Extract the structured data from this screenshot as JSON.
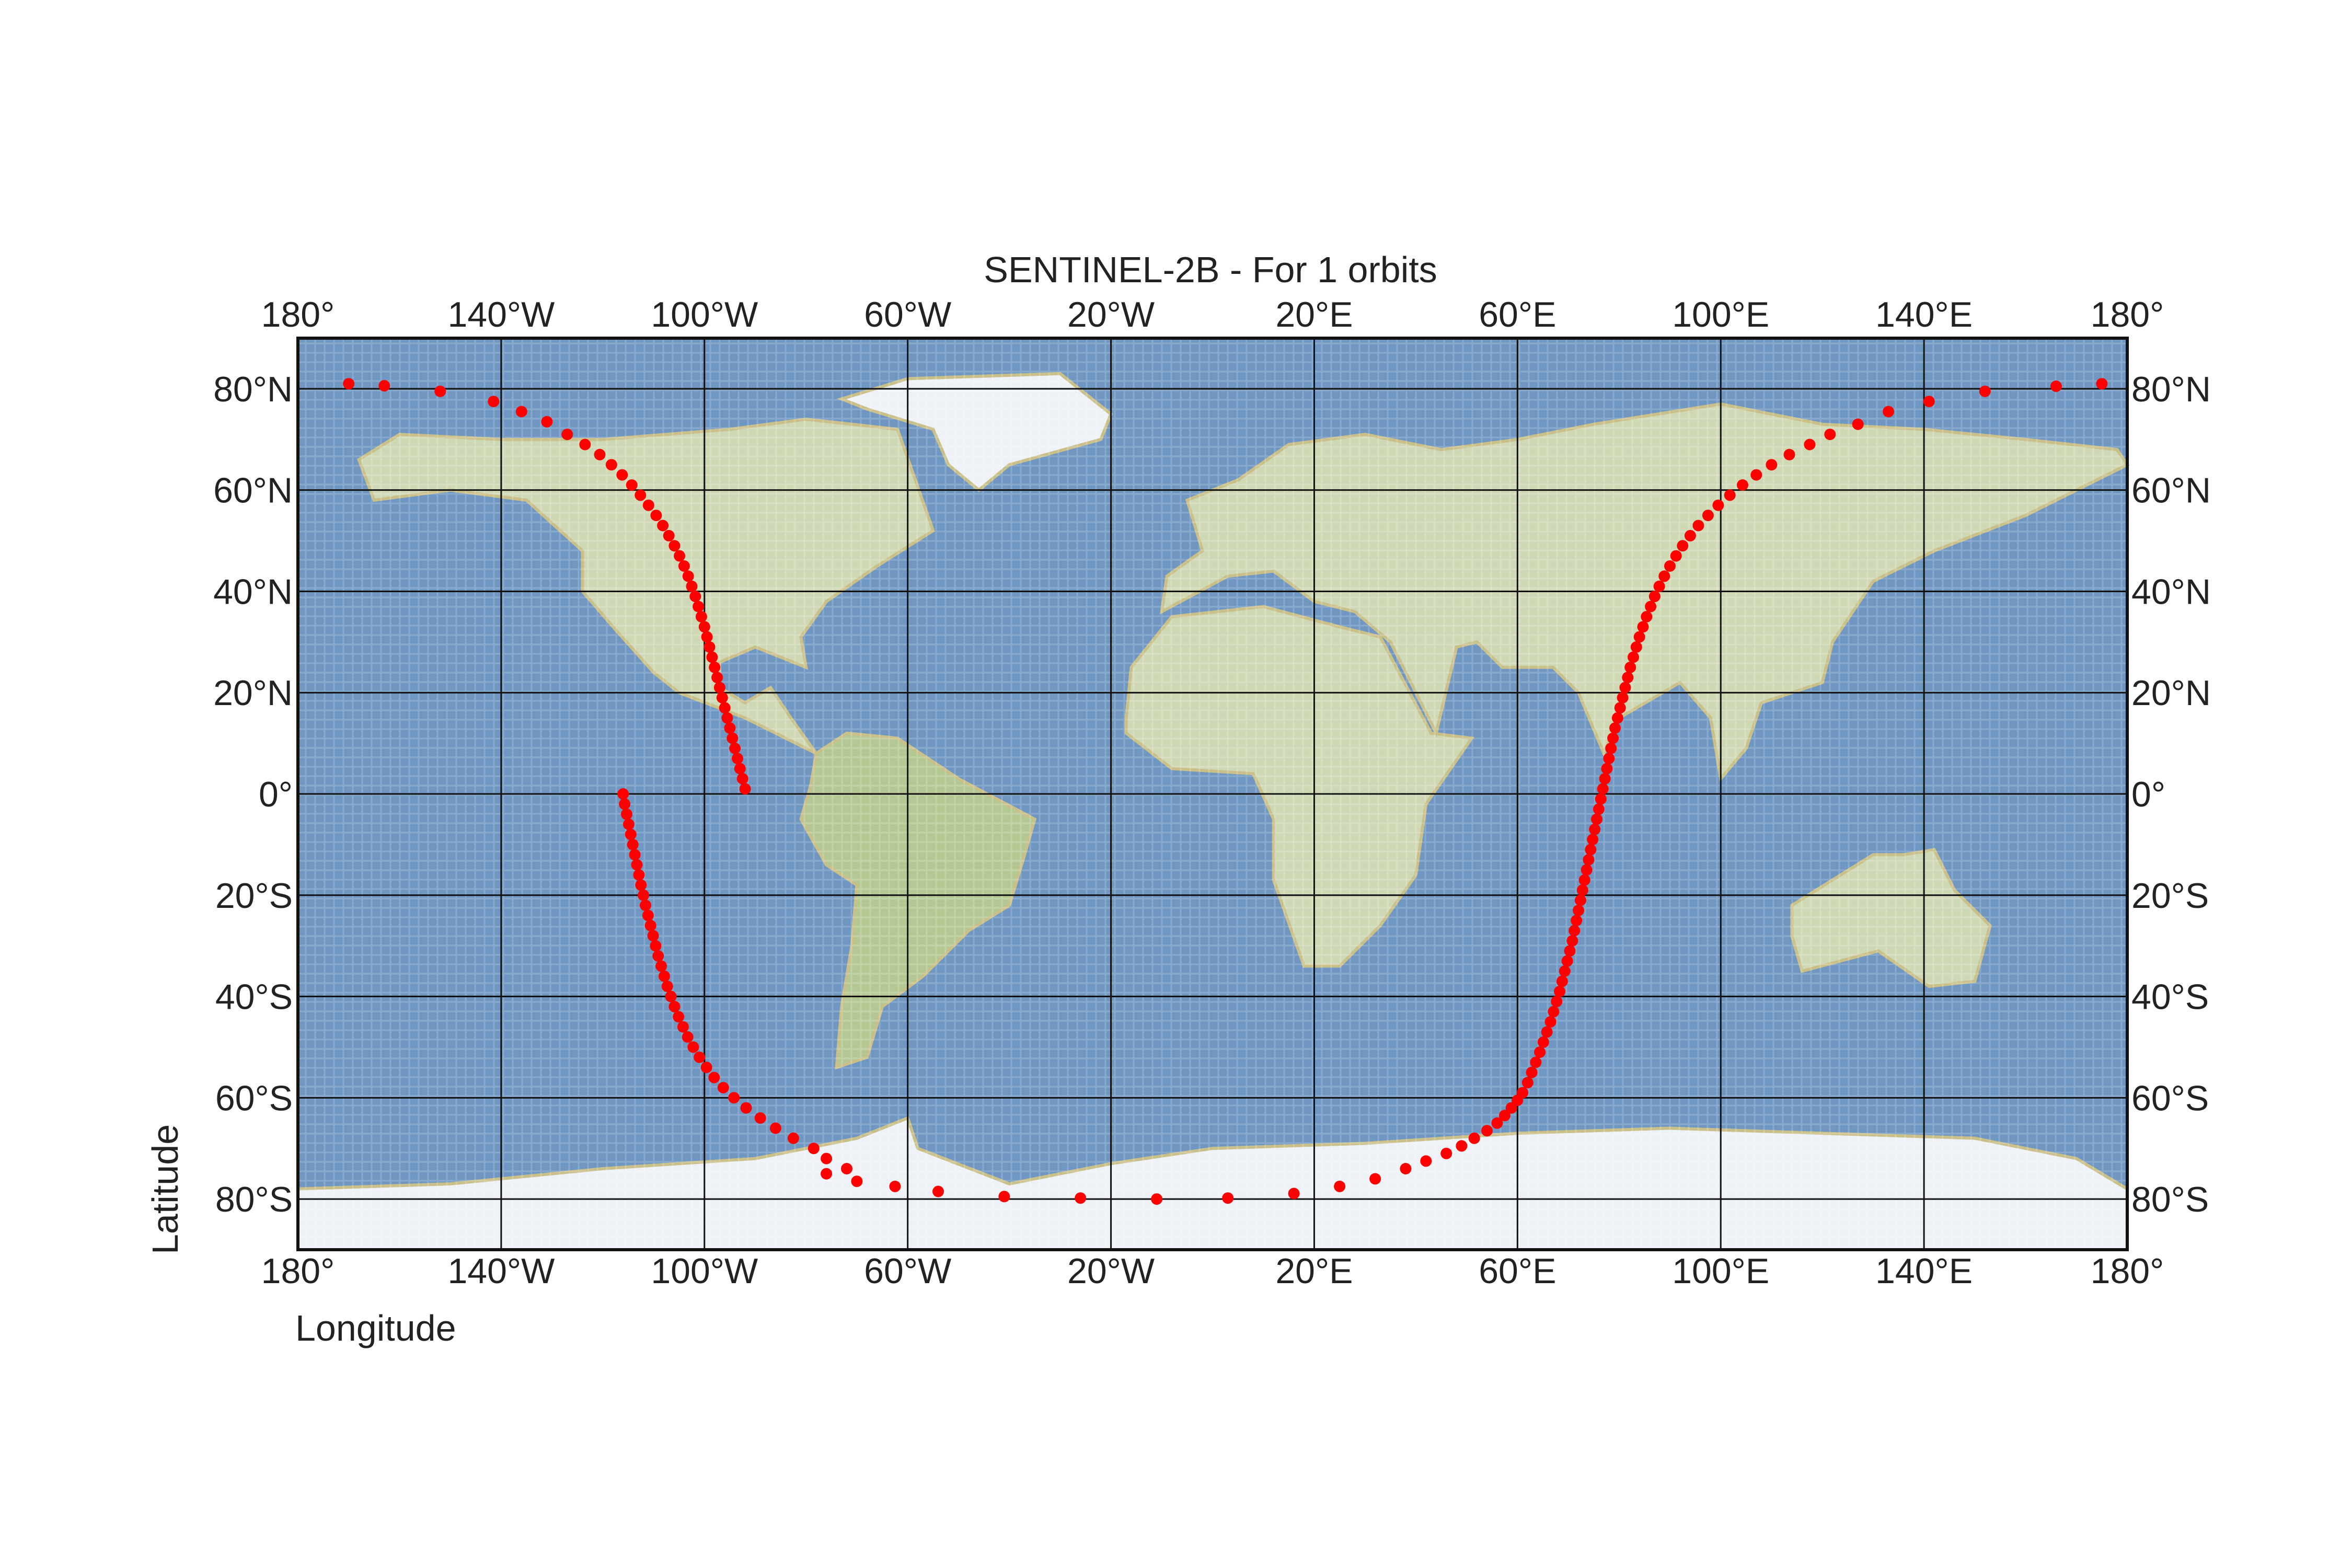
{
  "title": "SENTINEL-2B - For 1 orbits",
  "xlabel": "Longitude",
  "ylabel": "Latitude",
  "colors": {
    "ocean": "#6f97c2",
    "land": "#cfd8b4",
    "land_green": "#b5c894",
    "ice": "#eef1f6",
    "coast": "#c9c089",
    "grid": "#111111",
    "track": "#ff0000"
  },
  "x_ticks": [
    "180°",
    "140°W",
    "100°W",
    "60°W",
    "20°W",
    "20°E",
    "60°E",
    "100°E",
    "140°E",
    "180°"
  ],
  "y_ticks": [
    "80°N",
    "60°N",
    "40°N",
    "20°N",
    "0°",
    "20°S",
    "40°S",
    "60°S",
    "80°S"
  ],
  "chart_data": {
    "type": "scatter",
    "title": "SENTINEL-2B - For 1 orbits",
    "xlabel": "Longitude",
    "ylabel": "Latitude",
    "xlim": [
      -180,
      180
    ],
    "ylim": [
      -90,
      90
    ],
    "grid": true,
    "x_ticks": [
      -180,
      -140,
      -100,
      -60,
      -20,
      20,
      60,
      100,
      140,
      180
    ],
    "y_ticks": [
      80,
      60,
      40,
      20,
      0,
      -20,
      -40,
      -60,
      -80
    ],
    "series": [
      {
        "color": "#ff0000",
        "points": [
          [
            -92,
            1
          ],
          [
            -92.5,
            3
          ],
          [
            -93,
            5
          ],
          [
            -93.5,
            7
          ],
          [
            -94,
            9
          ],
          [
            -94.5,
            11
          ],
          [
            -95,
            13
          ],
          [
            -95.5,
            15
          ],
          [
            -96,
            17
          ],
          [
            -96.5,
            19
          ],
          [
            -97,
            21
          ],
          [
            -97.5,
            23
          ],
          [
            -98,
            25
          ],
          [
            -98.5,
            27
          ],
          [
            -99,
            29
          ],
          [
            -99.5,
            31
          ],
          [
            -100,
            33
          ],
          [
            -100.6,
            35
          ],
          [
            -101.2,
            37
          ],
          [
            -101.8,
            39
          ],
          [
            -102.5,
            41
          ],
          [
            -103.2,
            43
          ],
          [
            -104,
            45
          ],
          [
            -104.9,
            47
          ],
          [
            -105.9,
            49
          ],
          [
            -107,
            51
          ],
          [
            -108.2,
            53
          ],
          [
            -109.5,
            55
          ],
          [
            -111,
            57
          ],
          [
            -112.6,
            59
          ],
          [
            -114.3,
            61
          ],
          [
            -116.2,
            63
          ],
          [
            -118.3,
            65
          ],
          [
            -120.6,
            67
          ],
          [
            -123.5,
            69
          ],
          [
            -127,
            71
          ],
          [
            -131,
            73.5
          ],
          [
            -136,
            75.5
          ],
          [
            -141.5,
            77.5
          ],
          [
            -152,
            79.5
          ],
          [
            -163,
            80.6
          ],
          [
            -170,
            81
          ],
          [
            -116,
            0
          ],
          [
            -115.7,
            -2
          ],
          [
            -115.3,
            -4
          ],
          [
            -114.9,
            -6
          ],
          [
            -114.5,
            -8
          ],
          [
            -114.1,
            -10
          ],
          [
            -113.7,
            -12
          ],
          [
            -113.3,
            -14
          ],
          [
            -112.9,
            -16
          ],
          [
            -112.5,
            -18
          ],
          [
            -112,
            -20
          ],
          [
            -111.6,
            -22
          ],
          [
            -111.1,
            -24
          ],
          [
            -110.6,
            -26
          ],
          [
            -110.1,
            -28
          ],
          [
            -109.6,
            -30
          ],
          [
            -109.1,
            -32
          ],
          [
            -108.5,
            -34
          ],
          [
            -107.9,
            -36
          ],
          [
            -107.3,
            -38
          ],
          [
            -106.6,
            -40
          ],
          [
            -105.9,
            -42
          ],
          [
            -105.1,
            -44
          ],
          [
            -104.2,
            -46
          ],
          [
            -103.3,
            -48
          ],
          [
            -102.2,
            -50
          ],
          [
            -101,
            -52
          ],
          [
            -99.6,
            -54
          ],
          [
            -98.1,
            -56
          ],
          [
            -96.3,
            -58
          ],
          [
            -94.2,
            -60
          ],
          [
            -91.8,
            -62
          ],
          [
            -89,
            -64
          ],
          [
            -86,
            -66
          ],
          [
            -82.5,
            -68
          ],
          [
            -78.5,
            -70
          ],
          [
            -76,
            -72
          ],
          [
            -72,
            -74
          ],
          [
            -76,
            -75
          ],
          [
            -70,
            -76.5
          ],
          [
            -62.5,
            -77.5
          ],
          [
            -54,
            -78.5
          ],
          [
            -41,
            -79.5
          ],
          [
            -26,
            -79.8
          ],
          [
            -11,
            -80
          ],
          [
            3,
            -79.8
          ],
          [
            16,
            -78.9
          ],
          [
            25,
            -77.5
          ],
          [
            32,
            -76
          ],
          [
            38,
            -74
          ],
          [
            42,
            -72.5
          ],
          [
            46,
            -71
          ],
          [
            49,
            -69.5
          ],
          [
            51.5,
            -68
          ],
          [
            54,
            -66.5
          ],
          [
            56,
            -65
          ],
          [
            57.5,
            -63.5
          ],
          [
            58.8,
            -62
          ],
          [
            60,
            -60.5
          ],
          [
            61,
            -59
          ],
          [
            62,
            -57
          ],
          [
            62.8,
            -55
          ],
          [
            63.6,
            -53
          ],
          [
            64.4,
            -51
          ],
          [
            65.1,
            -49
          ],
          [
            65.8,
            -47
          ],
          [
            66.5,
            -45
          ],
          [
            67.1,
            -43
          ],
          [
            67.7,
            -41
          ],
          [
            68.3,
            -39
          ],
          [
            68.8,
            -37
          ],
          [
            69.3,
            -35
          ],
          [
            69.8,
            -33
          ],
          [
            70.3,
            -31
          ],
          [
            70.8,
            -29
          ],
          [
            71.2,
            -27
          ],
          [
            71.6,
            -25
          ],
          [
            72,
            -23
          ],
          [
            72.4,
            -21
          ],
          [
            72.8,
            -19
          ],
          [
            73.2,
            -17
          ],
          [
            73.6,
            -15
          ],
          [
            74,
            -13
          ],
          [
            74.4,
            -11
          ],
          [
            74.8,
            -9
          ],
          [
            75.2,
            -7
          ],
          [
            75.6,
            -5
          ],
          [
            76,
            -3
          ],
          [
            76.4,
            -1
          ],
          [
            76.8,
            1
          ],
          [
            77.2,
            3
          ],
          [
            77.6,
            5
          ],
          [
            78,
            7
          ],
          [
            78.4,
            9
          ],
          [
            78.8,
            11
          ],
          [
            79.2,
            13
          ],
          [
            79.7,
            15
          ],
          [
            80.2,
            17
          ],
          [
            80.7,
            19
          ],
          [
            81.2,
            21
          ],
          [
            81.7,
            23
          ],
          [
            82.2,
            25
          ],
          [
            82.8,
            27
          ],
          [
            83.4,
            29
          ],
          [
            84,
            31
          ],
          [
            84.7,
            33
          ],
          [
            85.4,
            35
          ],
          [
            86.2,
            37
          ],
          [
            87,
            39
          ],
          [
            87.9,
            41
          ],
          [
            88.9,
            43
          ],
          [
            90,
            45
          ],
          [
            91.2,
            47
          ],
          [
            92.5,
            49
          ],
          [
            94,
            51
          ],
          [
            95.6,
            53
          ],
          [
            97.5,
            55
          ],
          [
            99.5,
            57
          ],
          [
            101.8,
            59
          ],
          [
            104.3,
            61
          ],
          [
            107,
            63
          ],
          [
            110,
            65
          ],
          [
            113.5,
            67
          ],
          [
            117.5,
            69
          ],
          [
            121.5,
            71
          ],
          [
            127,
            73
          ],
          [
            133,
            75.5
          ],
          [
            141,
            77.5
          ],
          [
            152,
            79.5
          ],
          [
            166,
            80.5
          ],
          [
            175,
            81
          ]
        ]
      }
    ]
  }
}
